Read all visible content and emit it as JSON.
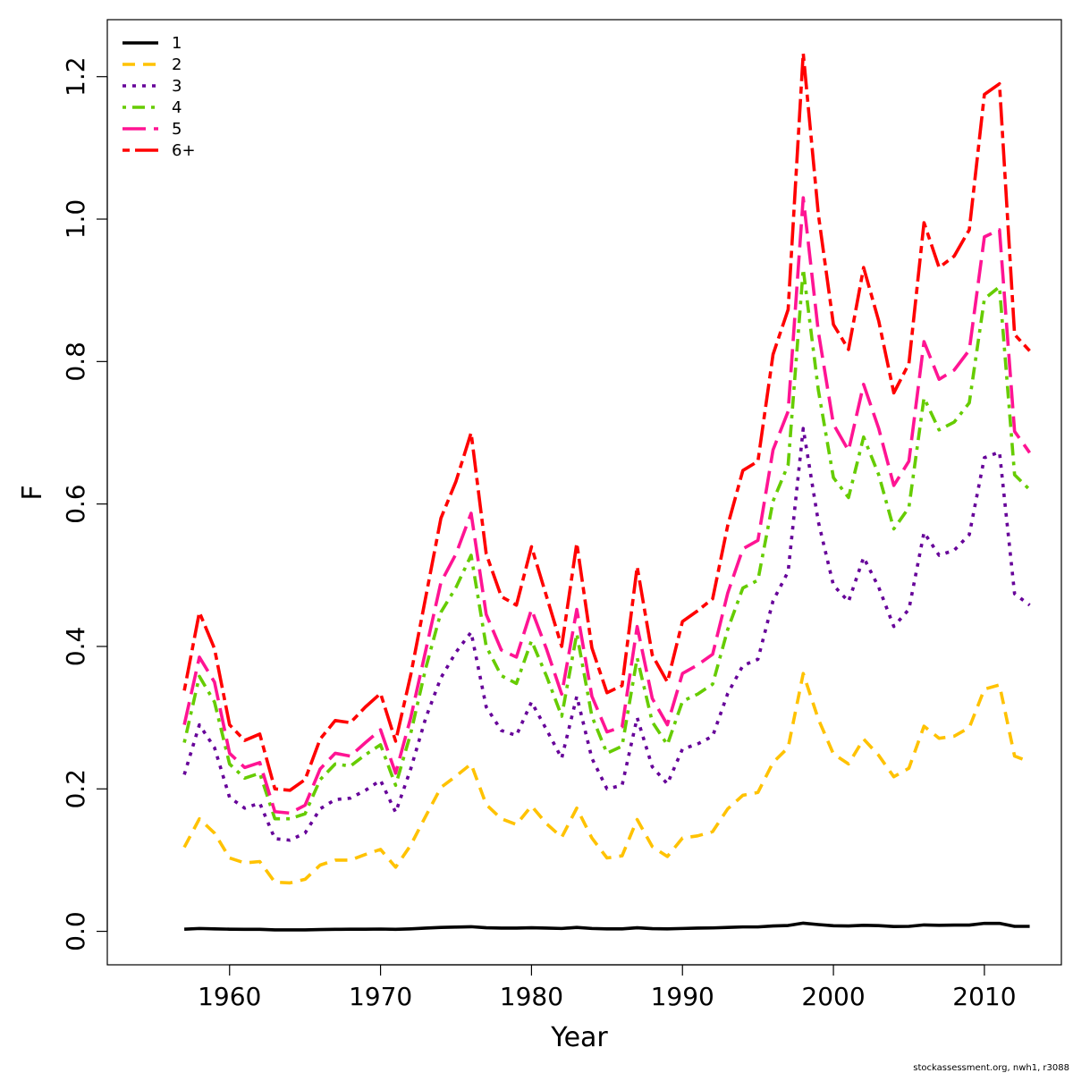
{
  "chart_data": {
    "type": "line",
    "xlabel": "Year",
    "ylabel": "F",
    "xlim": [
      1951.9,
      2015.1
    ],
    "ylim": [
      -0.047,
      1.28
    ],
    "x_ticks": [
      1960,
      1970,
      1980,
      1990,
      2000,
      2010
    ],
    "y_ticks": [
      0.0,
      0.2,
      0.4,
      0.6,
      0.8,
      1.0,
      1.2
    ],
    "x_tick_labels": [
      "1960",
      "1970",
      "1980",
      "1990",
      "2000",
      "2010"
    ],
    "y_tick_labels": [
      "0.0",
      "0.2",
      "0.4",
      "0.6",
      "0.8",
      "1.0",
      "1.2"
    ],
    "legend_position": "top-left",
    "grid": false,
    "credit": "stockassessment.org, nwh1, r3088",
    "x": [
      1957,
      1958,
      1959,
      1960,
      1961,
      1962,
      1963,
      1964,
      1965,
      1966,
      1967,
      1968,
      1969,
      1970,
      1971,
      1972,
      1973,
      1974,
      1975,
      1976,
      1977,
      1978,
      1979,
      1980,
      1981,
      1982,
      1983,
      1984,
      1985,
      1986,
      1987,
      1988,
      1989,
      1990,
      1991,
      1992,
      1993,
      1994,
      1995,
      1996,
      1997,
      1998,
      1999,
      2000,
      2001,
      2002,
      2003,
      2004,
      2005,
      2006,
      2007,
      2008,
      2009,
      2010,
      2011,
      2012,
      2013
    ],
    "series": [
      {
        "name": "1",
        "color": "#000000",
        "dash": "solid",
        "values": [
          0.003,
          0.004,
          0.0035,
          0.003,
          0.0028,
          0.0028,
          0.002,
          0.002,
          0.002,
          0.0025,
          0.0028,
          0.003,
          0.003,
          0.0032,
          0.0028,
          0.0035,
          0.0045,
          0.0055,
          0.006,
          0.0065,
          0.005,
          0.0045,
          0.0045,
          0.005,
          0.0045,
          0.004,
          0.0055,
          0.004,
          0.0035,
          0.0035,
          0.005,
          0.0038,
          0.0035,
          0.004,
          0.0045,
          0.0048,
          0.0055,
          0.0062,
          0.0062,
          0.0075,
          0.0082,
          0.0115,
          0.0095,
          0.0078,
          0.0075,
          0.0085,
          0.008,
          0.0068,
          0.007,
          0.009,
          0.0085,
          0.0088,
          0.0088,
          0.0112,
          0.0112,
          0.007,
          0.007
        ]
      },
      {
        "name": "2",
        "color": "#FFC200",
        "dash": "dashed",
        "values": [
          0.118,
          0.158,
          0.138,
          0.103,
          0.096,
          0.098,
          0.069,
          0.068,
          0.073,
          0.093,
          0.1,
          0.1,
          0.108,
          0.115,
          0.09,
          0.121,
          0.162,
          0.202,
          0.218,
          0.235,
          0.178,
          0.158,
          0.15,
          0.176,
          0.151,
          0.132,
          0.173,
          0.131,
          0.103,
          0.106,
          0.157,
          0.119,
          0.105,
          0.131,
          0.134,
          0.14,
          0.172,
          0.191,
          0.195,
          0.237,
          0.258,
          0.362,
          0.298,
          0.249,
          0.235,
          0.27,
          0.247,
          0.217,
          0.229,
          0.288,
          0.271,
          0.274,
          0.286,
          0.34,
          0.346,
          0.246,
          0.238
        ]
      },
      {
        "name": "3",
        "color": "#660099",
        "dash": "dotted",
        "values": [
          0.22,
          0.29,
          0.258,
          0.188,
          0.173,
          0.18,
          0.13,
          0.128,
          0.138,
          0.172,
          0.185,
          0.187,
          0.198,
          0.212,
          0.167,
          0.228,
          0.3,
          0.356,
          0.392,
          0.42,
          0.315,
          0.282,
          0.275,
          0.322,
          0.283,
          0.243,
          0.33,
          0.243,
          0.2,
          0.205,
          0.3,
          0.231,
          0.207,
          0.256,
          0.263,
          0.274,
          0.334,
          0.373,
          0.382,
          0.464,
          0.505,
          0.706,
          0.575,
          0.486,
          0.463,
          0.525,
          0.483,
          0.428,
          0.452,
          0.56,
          0.528,
          0.535,
          0.557,
          0.665,
          0.673,
          0.474,
          0.458
        ]
      },
      {
        "name": "4",
        "color": "#66CC00",
        "dash": "dotdash",
        "values": [
          0.265,
          0.358,
          0.322,
          0.235,
          0.215,
          0.222,
          0.158,
          0.158,
          0.165,
          0.213,
          0.235,
          0.232,
          0.248,
          0.262,
          0.205,
          0.278,
          0.37,
          0.448,
          0.483,
          0.528,
          0.4,
          0.359,
          0.348,
          0.408,
          0.358,
          0.302,
          0.418,
          0.302,
          0.25,
          0.26,
          0.384,
          0.294,
          0.262,
          0.323,
          0.333,
          0.347,
          0.424,
          0.482,
          0.493,
          0.604,
          0.655,
          0.93,
          0.76,
          0.637,
          0.609,
          0.694,
          0.641,
          0.565,
          0.595,
          0.749,
          0.704,
          0.715,
          0.742,
          0.888,
          0.905,
          0.641,
          0.62
        ]
      },
      {
        "name": "5",
        "color": "#FF1493",
        "dash": "longdash",
        "values": [
          0.29,
          0.385,
          0.35,
          0.25,
          0.23,
          0.237,
          0.168,
          0.166,
          0.177,
          0.228,
          0.25,
          0.246,
          0.265,
          0.283,
          0.222,
          0.3,
          0.395,
          0.49,
          0.53,
          0.587,
          0.445,
          0.395,
          0.385,
          0.452,
          0.396,
          0.333,
          0.452,
          0.33,
          0.28,
          0.287,
          0.428,
          0.327,
          0.29,
          0.362,
          0.374,
          0.389,
          0.475,
          0.537,
          0.549,
          0.676,
          0.73,
          1.03,
          0.842,
          0.712,
          0.675,
          0.768,
          0.706,
          0.626,
          0.66,
          0.828,
          0.775,
          0.788,
          0.816,
          0.975,
          0.985,
          0.702,
          0.672
        ]
      },
      {
        "name": "6+",
        "color": "#FF0000",
        "dash": "twodash",
        "values": [
          0.338,
          0.448,
          0.397,
          0.29,
          0.268,
          0.277,
          0.2,
          0.198,
          0.213,
          0.27,
          0.296,
          0.293,
          0.315,
          0.334,
          0.267,
          0.36,
          0.47,
          0.58,
          0.632,
          0.7,
          0.53,
          0.47,
          0.458,
          0.54,
          0.47,
          0.4,
          0.545,
          0.398,
          0.335,
          0.345,
          0.512,
          0.388,
          0.35,
          0.435,
          0.45,
          0.467,
          0.57,
          0.647,
          0.66,
          0.81,
          0.873,
          1.233,
          1.007,
          0.852,
          0.817,
          0.932,
          0.857,
          0.756,
          0.797,
          0.995,
          0.932,
          0.948,
          0.985,
          1.175,
          1.19,
          0.838,
          0.815
        ]
      }
    ]
  }
}
